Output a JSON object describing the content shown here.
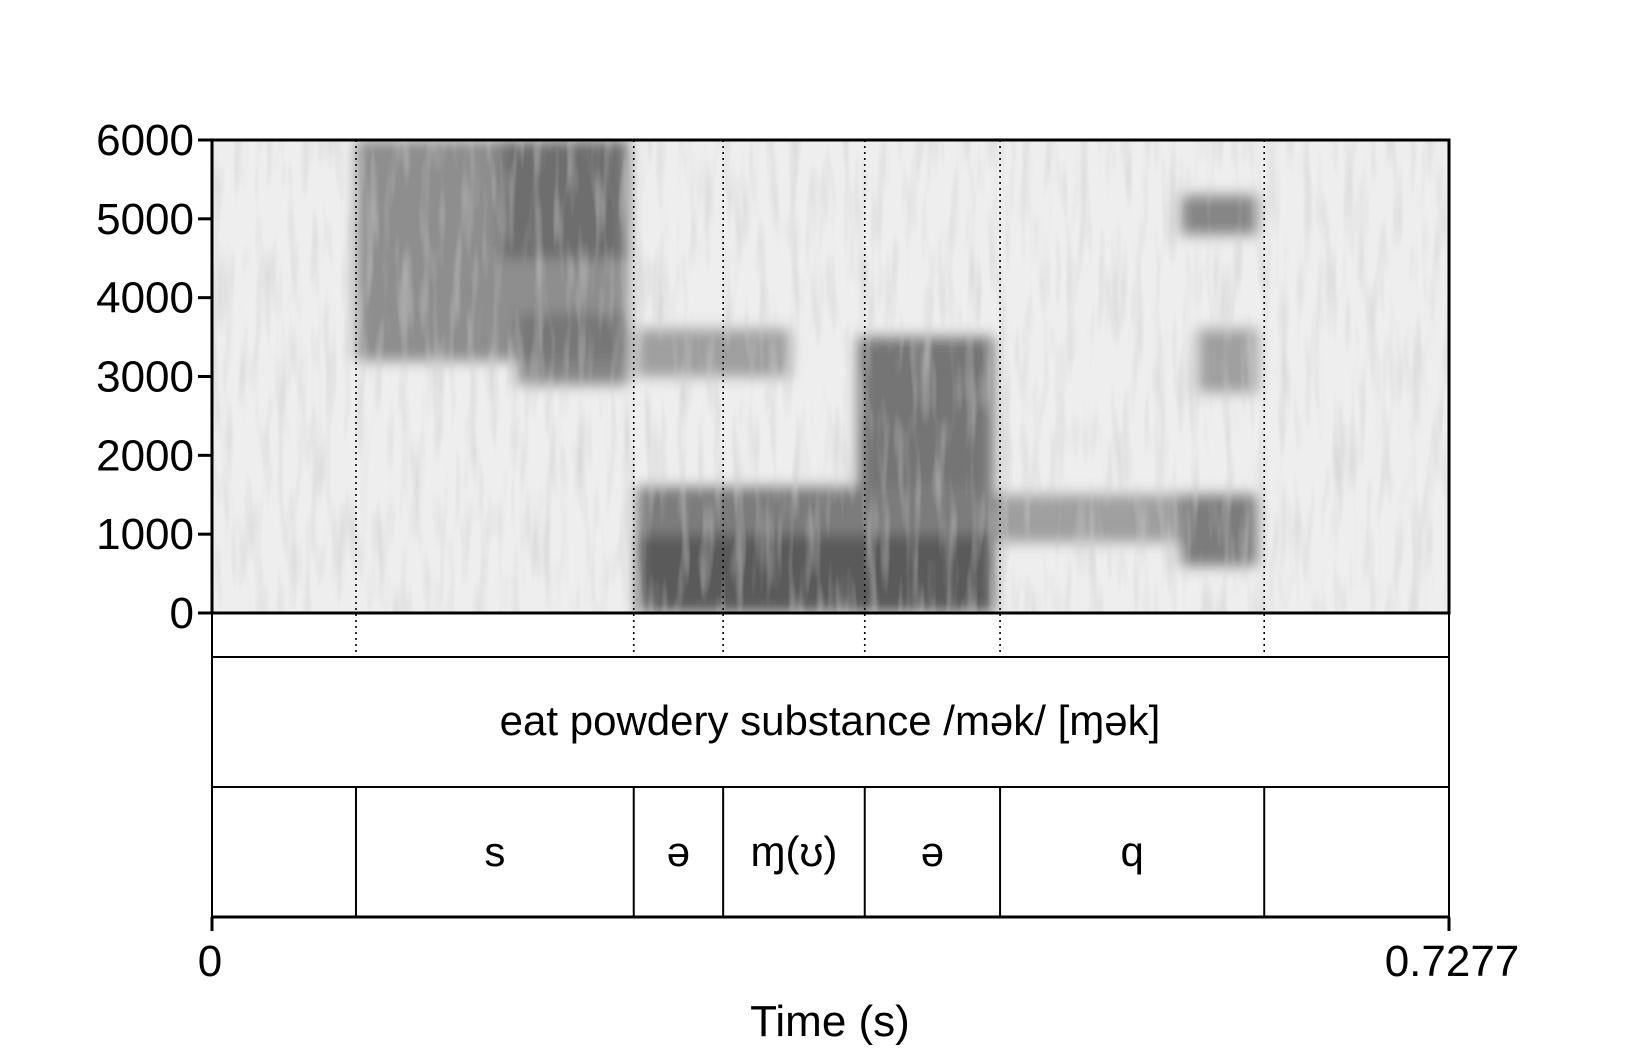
{
  "chart_data": {
    "type": "heatmap",
    "kind": "spectrogram with TextGrid annotation",
    "title": "",
    "xlabel": "Time (s)",
    "ylabel": "",
    "xlim": [
      0,
      0.7277
    ],
    "ylim": [
      0,
      6000
    ],
    "x_tick_labels": [
      "0",
      "0.7277"
    ],
    "y_ticks": [
      0,
      1000,
      2000,
      3000,
      4000,
      5000,
      6000
    ],
    "y_tick_labels": [
      "0",
      "1000",
      "2000",
      "3000",
      "4000",
      "5000",
      "6000"
    ],
    "colormap": "grayscale (darker = more energy)",
    "grid": false,
    "word_tier": {
      "label": "eat powdery substance /mək/ [ɱək]"
    },
    "segment_boundaries_s": [
      0.0847,
      0.2481,
      0.3007,
      0.384,
      0.4636,
      0.619
    ],
    "segments": [
      {
        "start": 0.0,
        "end": 0.0847,
        "label": ""
      },
      {
        "start": 0.0847,
        "end": 0.2481,
        "label": "s"
      },
      {
        "start": 0.2481,
        "end": 0.3007,
        "label": "ə"
      },
      {
        "start": 0.3007,
        "end": 0.384,
        "label": "ɱ(ʊ)"
      },
      {
        "start": 0.384,
        "end": 0.4636,
        "label": "ə"
      },
      {
        "start": 0.4636,
        "end": 0.619,
        "label": "q"
      },
      {
        "start": 0.619,
        "end": 0.7277,
        "label": ""
      }
    ],
    "energy_regions": [
      {
        "t0": 0.085,
        "t1": 0.245,
        "f0": 3200,
        "f1": 6000,
        "level": 0.55
      },
      {
        "t0": 0.17,
        "t1": 0.245,
        "f0": 4500,
        "f1": 6000,
        "level": 0.65
      },
      {
        "t0": 0.18,
        "t1": 0.245,
        "f0": 2900,
        "f1": 3800,
        "level": 0.6
      },
      {
        "t0": 0.25,
        "t1": 0.46,
        "f0": 0,
        "f1": 1000,
        "level": 0.85
      },
      {
        "t0": 0.25,
        "t1": 0.46,
        "f0": 1000,
        "f1": 1600,
        "level": 0.65
      },
      {
        "t0": 0.25,
        "t1": 0.34,
        "f0": 3000,
        "f1": 3600,
        "level": 0.45
      },
      {
        "t0": 0.38,
        "t1": 0.46,
        "f0": 1600,
        "f1": 3500,
        "level": 0.7
      },
      {
        "t0": 0.46,
        "t1": 0.57,
        "f0": 900,
        "f1": 1500,
        "level": 0.45
      },
      {
        "t0": 0.57,
        "t1": 0.615,
        "f0": 600,
        "f1": 1500,
        "level": 0.65
      },
      {
        "t0": 0.57,
        "t1": 0.615,
        "f0": 4800,
        "f1": 5300,
        "level": 0.6
      },
      {
        "t0": 0.58,
        "t1": 0.615,
        "f0": 2800,
        "f1": 3600,
        "level": 0.45
      }
    ]
  }
}
